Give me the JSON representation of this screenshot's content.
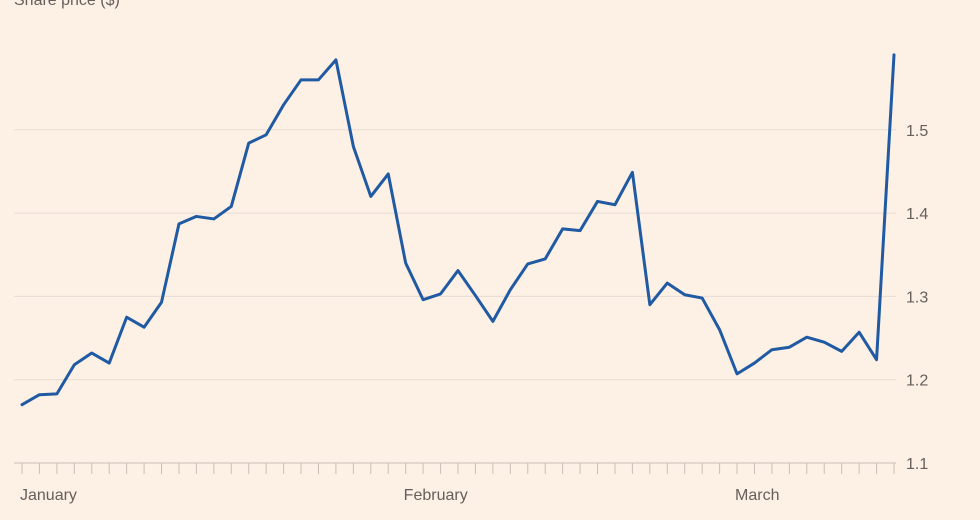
{
  "chart_data": {
    "type": "line",
    "subtitle": "Share price ($)",
    "ylim": [
      1.1,
      1.6
    ],
    "yticks": [
      1.1,
      1.2,
      1.3,
      1.4,
      1.5
    ],
    "ytick_labels": [
      "1.1",
      "1.2",
      "1.3",
      "1.4",
      "1.5"
    ],
    "xtick_labels": [
      "January",
      "February",
      "March"
    ],
    "xtick_label_index": [
      0,
      22,
      41
    ],
    "tick_count": 51,
    "grid": true,
    "line_color": "#1f5aa3",
    "series": [
      {
        "values": [
          1.17,
          1.182,
          1.183,
          1.218,
          1.232,
          1.22,
          1.275,
          1.263,
          1.293,
          1.387,
          1.396,
          1.393,
          1.408,
          1.484,
          1.494,
          1.53,
          1.56,
          1.56,
          1.584,
          1.48,
          1.42,
          1.447,
          1.34,
          1.296,
          1.303,
          1.331,
          1.301,
          1.27,
          1.308,
          1.339,
          1.345,
          1.381,
          1.379,
          1.414,
          1.41,
          1.449,
          1.29,
          1.316,
          1.302,
          1.298,
          1.26,
          1.207,
          1.22,
          1.236,
          1.239,
          1.251,
          1.245,
          1.234,
          1.257,
          1.224,
          1.59
        ]
      }
    ]
  }
}
